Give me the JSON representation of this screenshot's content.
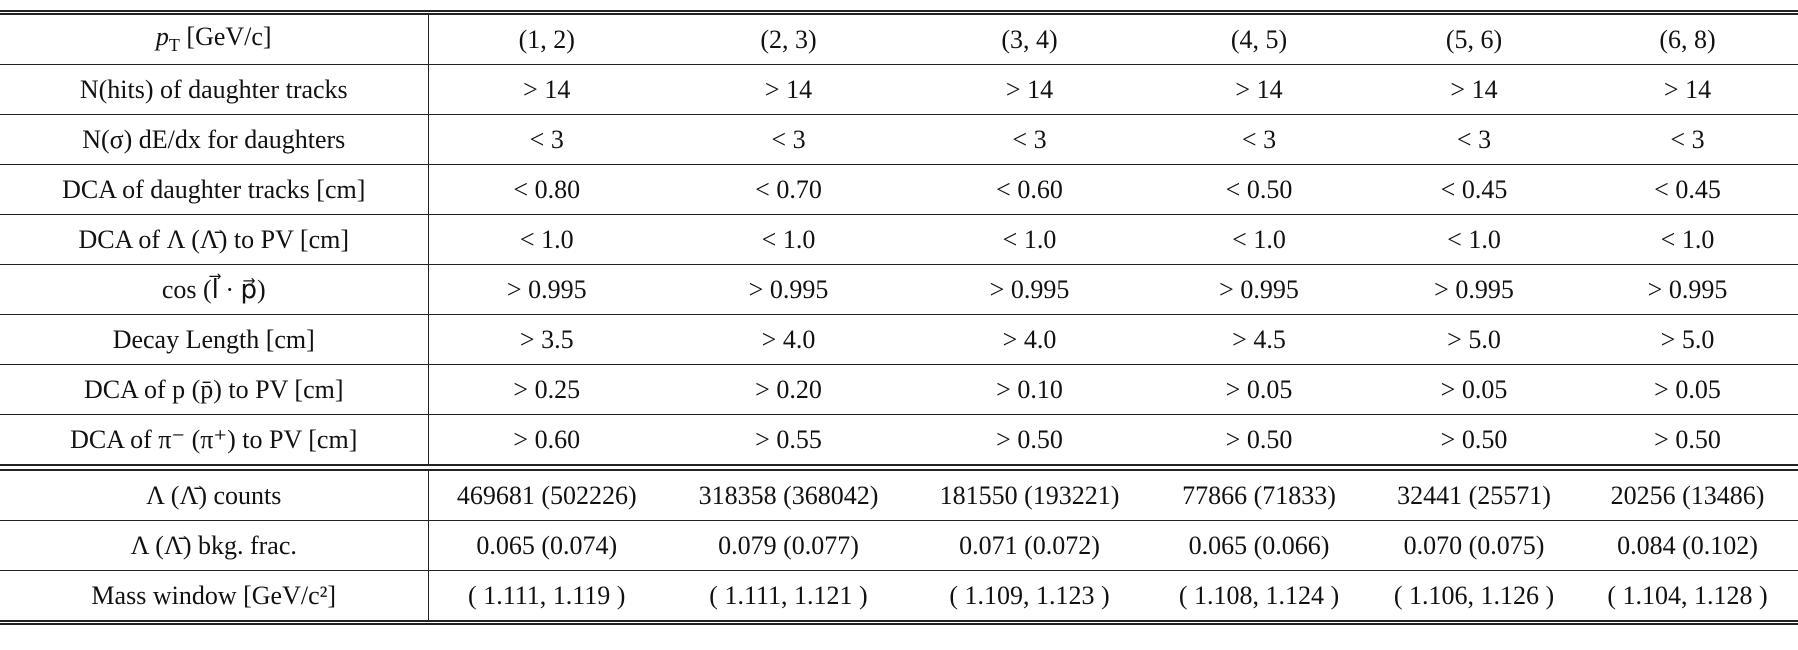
{
  "table": {
    "header": {
      "label": {
        "symbol": "p",
        "subscript": "T",
        "unit": " [GeV/c]"
      },
      "bins": [
        "(1, 2)",
        "(2, 3)",
        "(3, 4)",
        "(4, 5)",
        "(5, 6)",
        "(6, 8)"
      ]
    },
    "cut_rows": [
      {
        "label": "N(hits) of daughter tracks",
        "cells": [
          "> 14",
          "> 14",
          "> 14",
          "> 14",
          "> 14",
          "> 14"
        ]
      },
      {
        "label": "N(σ) dE/dx for daughters",
        "cells": [
          "< 3",
          "< 3",
          "< 3",
          "< 3",
          "< 3",
          "< 3"
        ]
      },
      {
        "label": "DCA of daughter tracks [cm]",
        "cells": [
          "< 0.80",
          "< 0.70",
          "< 0.60",
          "< 0.50",
          "< 0.45",
          "< 0.45"
        ]
      },
      {
        "label": "DCA of Λ (Λ̄) to PV [cm]",
        "cells": [
          "< 1.0",
          "< 1.0",
          "< 1.0",
          "< 1.0",
          "< 1.0",
          "< 1.0"
        ]
      },
      {
        "label": "cos (l⃗ · p⃗)",
        "cells": [
          "> 0.995",
          "> 0.995",
          "> 0.995",
          "> 0.995",
          "> 0.995",
          "> 0.995"
        ]
      },
      {
        "label": "Decay Length [cm]",
        "cells": [
          "> 3.5",
          "> 4.0",
          "> 4.0",
          "> 4.5",
          "> 5.0",
          "> 5.0"
        ]
      },
      {
        "label": "DCA of p (p̄) to PV [cm]",
        "cells": [
          "> 0.25",
          "> 0.20",
          "> 0.10",
          "> 0.05",
          "> 0.05",
          "> 0.05"
        ]
      },
      {
        "label": "DCA of π⁻ (π⁺) to PV [cm]",
        "cells": [
          "> 0.60",
          "> 0.55",
          "> 0.50",
          "> 0.50",
          "> 0.50",
          "> 0.50"
        ]
      }
    ],
    "yield_rows": [
      {
        "label": "Λ (Λ̄) counts",
        "cells": [
          "469681 (502226)",
          "318358 (368042)",
          "181550 (193221)",
          "77866 (71833)",
          "32441 (25571)",
          "20256 (13486)"
        ]
      },
      {
        "label": "Λ (Λ̄) bkg. frac.",
        "cells": [
          "0.065 (0.074)",
          "0.079 (0.077)",
          "0.071 (0.072)",
          "0.065 (0.066)",
          "0.070 (0.075)",
          "0.084 (0.102)"
        ]
      },
      {
        "label": "Mass window [GeV/c²]",
        "cells": [
          "( 1.111, 1.119 )",
          "( 1.111, 1.121 )",
          "( 1.109, 1.123 )",
          "( 1.108, 1.124 )",
          "( 1.106, 1.126 )",
          "( 1.104, 1.128 )"
        ]
      }
    ]
  }
}
